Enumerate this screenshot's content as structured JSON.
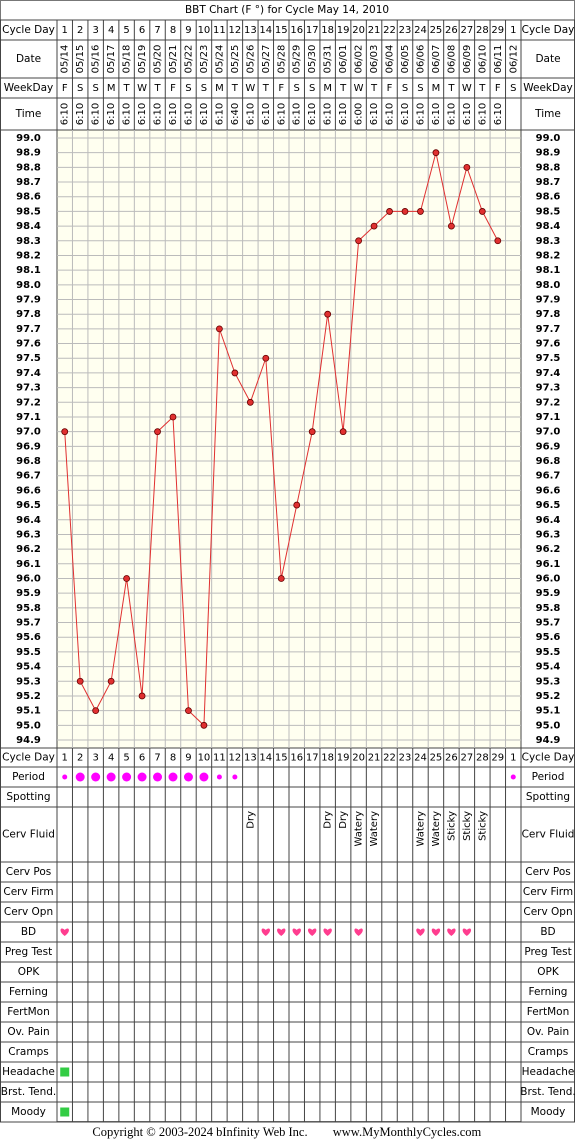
{
  "title": "BBT Chart (F °) for Cycle May 14, 2010",
  "row_labels": {
    "cycle_day": "Cycle Day",
    "date": "Date",
    "weekday": "WeekDay",
    "time": "Time",
    "period": "Period",
    "spotting": "Spotting",
    "cerv_fluid": "Cerv Fluid",
    "cerv_pos": "Cerv Pos",
    "cerv_firm": "Cerv Firm",
    "cerv_opn": "Cerv Opn",
    "bd": "BD",
    "preg_test": "Preg Test",
    "opk": "OPK",
    "ferning": "Ferning",
    "fertmon": "FertMon",
    "ov_pain": "Ov. Pain",
    "cramps": "Cramps",
    "headache": "Headache",
    "brst_tend": "Brst. Tend.",
    "moody": "Moody"
  },
  "chart_data": {
    "type": "line",
    "categories": [
      1,
      2,
      3,
      4,
      5,
      6,
      7,
      8,
      9,
      10,
      11,
      12,
      13,
      14,
      15,
      16,
      17,
      18,
      19,
      20,
      21,
      22,
      23,
      24,
      25,
      26,
      27,
      28,
      29,
      1
    ],
    "dates": [
      "05/14",
      "05/15",
      "05/16",
      "05/17",
      "05/18",
      "05/19",
      "05/20",
      "05/21",
      "05/22",
      "05/23",
      "05/24",
      "05/25",
      "05/26",
      "05/27",
      "05/28",
      "05/29",
      "05/30",
      "05/31",
      "06/01",
      "06/02",
      "06/03",
      "06/04",
      "06/05",
      "06/06",
      "06/07",
      "06/08",
      "06/09",
      "06/10",
      "06/11",
      "06/12"
    ],
    "weekdays": [
      "F",
      "S",
      "S",
      "M",
      "T",
      "W",
      "T",
      "F",
      "S",
      "S",
      "M",
      "T",
      "W",
      "T",
      "F",
      "S",
      "S",
      "M",
      "T",
      "W",
      "T",
      "F",
      "S",
      "S",
      "M",
      "T",
      "W",
      "T",
      "F",
      "S"
    ],
    "times": [
      "6:10",
      "6:10",
      "6:10",
      "6:10",
      "6:10",
      "6:10",
      "6:10",
      "6:10",
      "6:10",
      "6:10",
      "6:10",
      "6:40",
      "6:10",
      "6:10",
      "6:10",
      "6:10",
      "6:10",
      "6:10",
      "6:10",
      "6:00",
      "6:10",
      "6:10",
      "6:10",
      "6:10",
      "6:10",
      "6:10",
      "6:10",
      "6:10",
      "6:10",
      null
    ],
    "values": [
      97.0,
      95.3,
      95.1,
      95.3,
      96.0,
      95.2,
      97.0,
      97.1,
      95.1,
      95.0,
      97.7,
      97.4,
      97.2,
      97.5,
      96.0,
      96.5,
      97.0,
      97.8,
      97.0,
      98.3,
      98.4,
      98.5,
      98.5,
      98.5,
      98.9,
      98.4,
      98.8,
      98.5,
      98.3,
      null
    ],
    "color": "#e03030",
    "ylim": [
      94.9,
      99.0
    ],
    "yticks": [
      {
        "value": 99.0,
        "label": "99.0"
      },
      98.9,
      98.8,
      98.7,
      98.6,
      98.5,
      98.4,
      98.3,
      98.2,
      98.1,
      {
        "value": 98.0,
        "label": "98.0"
      },
      97.9,
      97.8,
      97.7,
      97.6,
      97.5,
      97.4,
      97.3,
      97.2,
      97.1,
      {
        "value": 97.0,
        "label": "97.0"
      },
      96.9,
      96.8,
      96.7,
      96.6,
      96.5,
      96.4,
      96.3,
      96.2,
      96.1,
      {
        "value": 96.0,
        "label": "96.0"
      },
      95.9,
      95.8,
      95.7,
      95.6,
      95.5,
      95.4,
      95.3,
      95.2,
      95.1,
      {
        "value": 95.0,
        "label": "95.0"
      },
      94.9
    ],
    "grid": true
  },
  "observations": {
    "period": [
      1,
      2,
      2,
      2,
      2,
      2,
      2,
      2,
      2,
      2,
      1,
      1,
      null,
      null,
      null,
      null,
      null,
      null,
      null,
      null,
      null,
      null,
      null,
      null,
      null,
      null,
      null,
      null,
      null,
      1
    ],
    "cerv_fluid": [
      null,
      null,
      null,
      null,
      null,
      null,
      null,
      null,
      null,
      null,
      null,
      null,
      "Dry",
      null,
      null,
      null,
      null,
      "Dry",
      "Dry",
      "Watery",
      "Watery",
      null,
      null,
      "Watery",
      "Watery",
      "Sticky",
      "Sticky",
      "Sticky",
      null,
      null
    ],
    "bd": [
      true,
      null,
      null,
      null,
      null,
      null,
      null,
      null,
      null,
      null,
      null,
      null,
      null,
      true,
      true,
      true,
      true,
      true,
      null,
      true,
      null,
      null,
      null,
      true,
      true,
      true,
      true,
      null,
      null,
      null
    ],
    "headache": [
      true,
      null,
      null,
      null,
      null,
      null,
      null,
      null,
      null,
      null,
      null,
      null,
      null,
      null,
      null,
      null,
      null,
      null,
      null,
      null,
      null,
      null,
      null,
      null,
      null,
      null,
      null,
      null,
      null,
      null
    ],
    "moody": [
      true,
      null,
      null,
      null,
      null,
      null,
      null,
      null,
      null,
      null,
      null,
      null,
      null,
      null,
      null,
      null,
      null,
      null,
      null,
      null,
      null,
      null,
      null,
      null,
      null,
      null,
      null,
      null,
      null,
      null
    ]
  },
  "footer": {
    "copyright": "Copyright © 2003-2024 bInfinity Web Inc.",
    "website": "www.MyMonthlyCycles.com"
  }
}
